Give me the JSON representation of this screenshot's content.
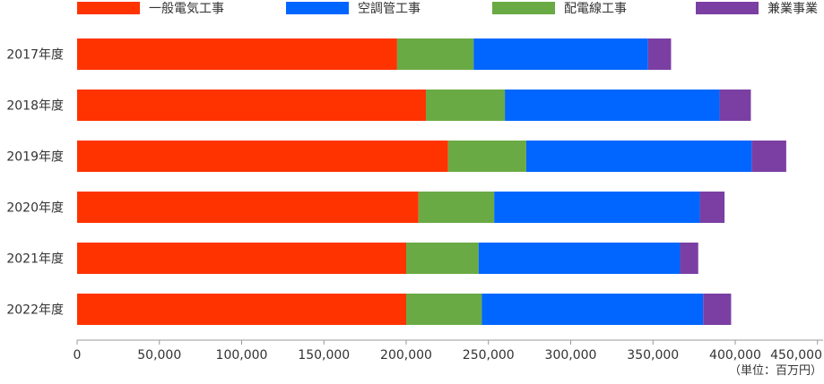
{
  "chart_data": {
    "type": "bar",
    "orientation": "horizontal",
    "stacked": true,
    "categories": [
      "2017年度",
      "2018年度",
      "2019年度",
      "2020年度",
      "2021年度",
      "2022年度"
    ],
    "series": [
      {
        "name": "一般電気工事",
        "color": "#ff3300",
        "values": [
          194500,
          212000,
          225500,
          207500,
          200000,
          200000
        ]
      },
      {
        "name": "配電線工事",
        "color": "#6aaa45",
        "values": [
          46500,
          48000,
          47500,
          46000,
          44000,
          46000
        ]
      },
      {
        "name": "空調管工事",
        "color": "#0066ff",
        "values": [
          106000,
          130500,
          137000,
          125000,
          122500,
          134500
        ]
      },
      {
        "name": "兼業事業",
        "color": "#7b3fa3",
        "values": [
          14000,
          19000,
          21000,
          15000,
          11000,
          17000
        ]
      }
    ],
    "legend": {
      "position": "top",
      "order": [
        "一般電気工事",
        "空調管工事",
        "配電線工事",
        "兼業事業"
      ]
    },
    "xaxis": {
      "min": 0,
      "max": 450000,
      "step": 50000,
      "tick_labels": [
        "0",
        "50,000",
        "100,000",
        "150,000",
        "200,000",
        "250,000",
        "300,000",
        "350,000",
        "400,000",
        "450,000"
      ]
    },
    "unit_label": "（単位：百万円）",
    "grid": false
  }
}
